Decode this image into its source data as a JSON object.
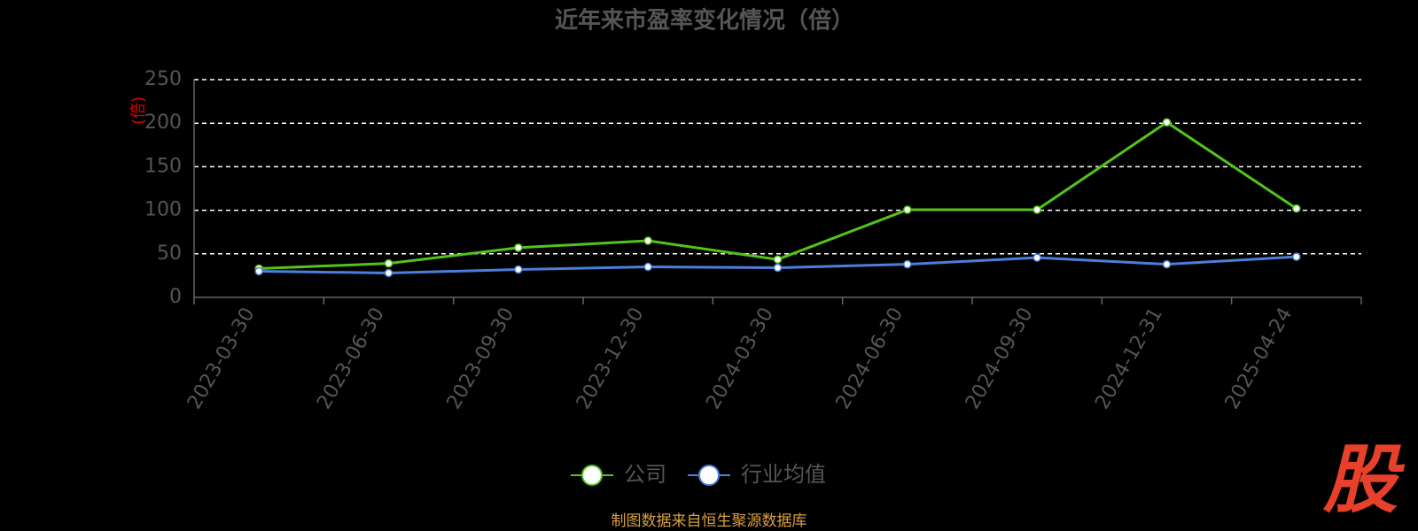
{
  "chart_data": {
    "type": "line",
    "title": "近年来市盈率变化情况（倍）",
    "y_label": "(倍)",
    "categories": [
      "2023-03-30",
      "2023-06-30",
      "2023-09-30",
      "2023-12-30",
      "2024-03-30",
      "2024-06-30",
      "2024-09-30",
      "2024-12-31",
      "2025-04-24"
    ],
    "series": [
      {
        "name": "公司",
        "color": "#52c41a",
        "values": [
          33,
          39,
          57,
          65,
          43.5,
          100.6,
          100.6,
          201,
          102
        ]
      },
      {
        "name": "行业均值",
        "color": "#4a7fdc",
        "values": [
          30,
          28,
          32,
          35,
          34,
          38,
          45.6,
          38,
          46.6
        ]
      }
    ],
    "ylim": [
      0,
      250
    ],
    "yticks": [
      0,
      50,
      100,
      150,
      200,
      250
    ],
    "grid": true,
    "source": "制图数据来自恒生聚源数据库",
    "logo": "股"
  }
}
